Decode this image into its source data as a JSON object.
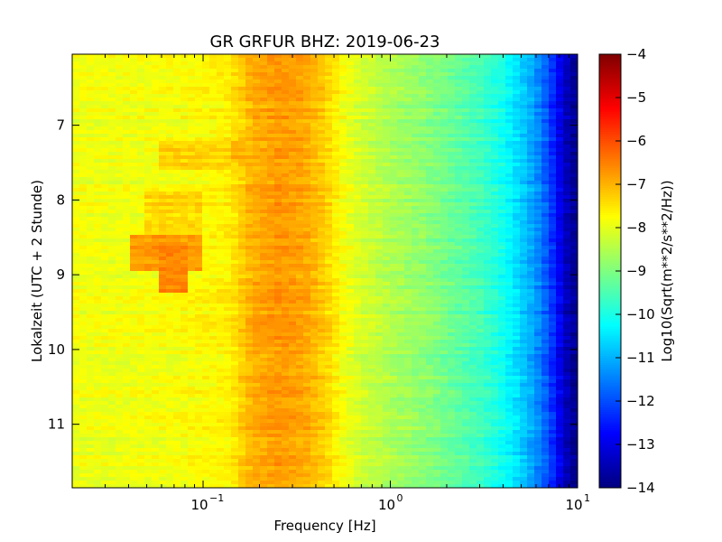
{
  "chart_data": {
    "type": "heatmap",
    "title": "GR GRFUR BHZ: 2019-06-23",
    "xlabel": "Frequency [Hz]",
    "ylabel": "Lokalzeit (UTC + 2 Stunde)",
    "x_scale": "log",
    "xlim": [
      0.02,
      10
    ],
    "ylim": [
      11.85,
      6.05
    ],
    "y_inverted": true,
    "x_ticks": [
      {
        "value": 0.1,
        "base": "10",
        "exponent": "−1"
      },
      {
        "value": 1,
        "base": "10",
        "exponent": "0"
      },
      {
        "value": 10,
        "base": "10",
        "exponent": "1"
      }
    ],
    "y_ticks": [
      "7",
      "8",
      "9",
      "10",
      "11"
    ],
    "colorbar": {
      "label": "Log10(Sqrt(m**2/s**2/Hz))",
      "min": -14,
      "max": -4,
      "ticks": [
        "−4",
        "−5",
        "−6",
        "−7",
        "−8",
        "−9",
        "−10",
        "−11",
        "−12",
        "−13",
        "−14"
      ],
      "colormap": "jet"
    },
    "colormap_stops": [
      "#00007f",
      "#0000ff",
      "#007fff",
      "#00ffff",
      "#7fff7f",
      "#ffff00",
      "#ff7f00",
      "#ff0000",
      "#7f0000"
    ],
    "value_profile_by_frequency": [
      {
        "f": 0.02,
        "v": -7.9
      },
      {
        "f": 0.035,
        "v": -7.9
      },
      {
        "f": 0.06,
        "v": -7.85
      },
      {
        "f": 0.1,
        "v": -7.75
      },
      {
        "f": 0.14,
        "v": -7.6
      },
      {
        "f": 0.18,
        "v": -7.0
      },
      {
        "f": 0.25,
        "v": -6.75
      },
      {
        "f": 0.35,
        "v": -6.9
      },
      {
        "f": 0.45,
        "v": -7.3
      },
      {
        "f": 0.55,
        "v": -7.8
      },
      {
        "f": 0.7,
        "v": -8.2
      },
      {
        "f": 1.0,
        "v": -8.55
      },
      {
        "f": 1.5,
        "v": -8.85
      },
      {
        "f": 2.0,
        "v": -9.15
      },
      {
        "f": 3.0,
        "v": -9.6
      },
      {
        "f": 4.0,
        "v": -10.1
      },
      {
        "f": 5.0,
        "v": -10.7
      },
      {
        "f": 6.0,
        "v": -11.3
      },
      {
        "f": 7.0,
        "v": -12.0
      },
      {
        "f": 8.0,
        "v": -12.9
      },
      {
        "f": 9.0,
        "v": -13.6
      },
      {
        "f": 10.0,
        "v": -13.9
      }
    ],
    "anomalies": [
      {
        "f_min": 0.04,
        "f_max": 0.095,
        "t_min": 8.45,
        "t_max": 8.95,
        "v": -6.8
      },
      {
        "f_min": 0.06,
        "f_max": 0.08,
        "t_min": 8.55,
        "t_max": 9.25,
        "v": -6.55
      },
      {
        "f_min": 0.06,
        "f_max": 0.14,
        "t_min": 7.2,
        "t_max": 7.6,
        "v": -7.3
      },
      {
        "f_min": 0.14,
        "f_max": 0.2,
        "t_min": 7.2,
        "t_max": 7.5,
        "v": -7.0
      },
      {
        "f_min": 0.05,
        "f_max": 0.1,
        "t_min": 7.9,
        "t_max": 8.5,
        "v": -7.4
      }
    ]
  }
}
